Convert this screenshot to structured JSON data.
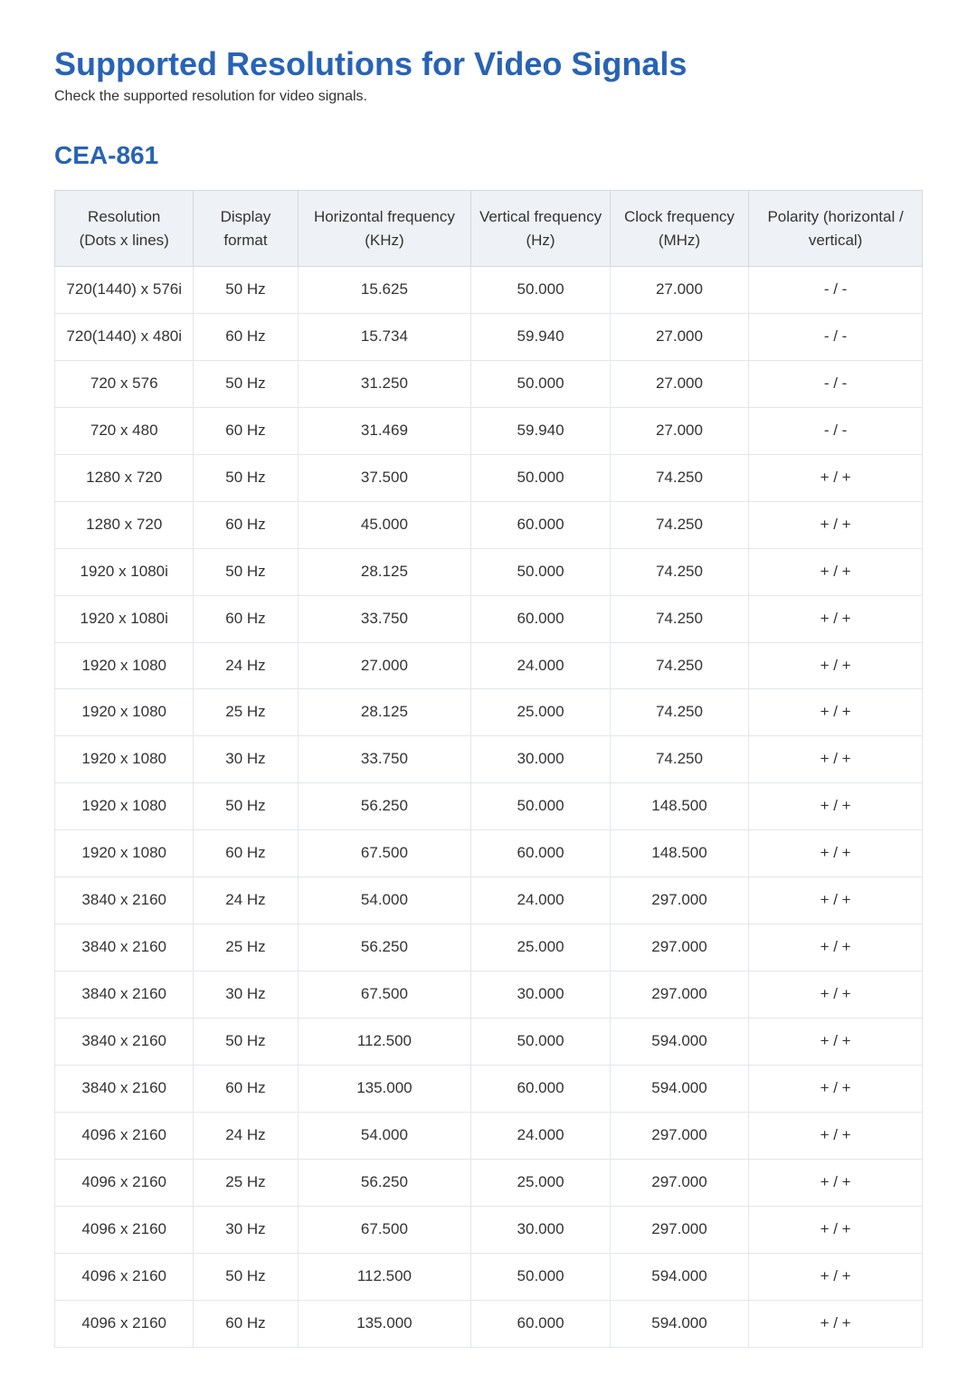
{
  "page": {
    "title": "Supported Resolutions for Video Signals",
    "subtitle": "Check the supported resolution for video signals."
  },
  "section": {
    "title": "CEA-861"
  },
  "table": {
    "columns": [
      {
        "line1": "Resolution",
        "line2": "(Dots x lines)"
      },
      {
        "line1": "Display format",
        "line2": ""
      },
      {
        "line1": "Horizontal frequency",
        "line2": "(KHz)"
      },
      {
        "line1": "Vertical frequency",
        "line2": "(Hz)"
      },
      {
        "line1": "Clock frequency",
        "line2": "(MHz)"
      },
      {
        "line1": "Polarity (horizontal / vertical)",
        "line2": ""
      }
    ],
    "rows": [
      [
        "720(1440) x 576i",
        "50 Hz",
        "15.625",
        "50.000",
        "27.000",
        "- / -"
      ],
      [
        "720(1440) x 480i",
        "60 Hz",
        "15.734",
        "59.940",
        "27.000",
        "- / -"
      ],
      [
        "720 x 576",
        "50 Hz",
        "31.250",
        "50.000",
        "27.000",
        "- / -"
      ],
      [
        "720 x 480",
        "60 Hz",
        "31.469",
        "59.940",
        "27.000",
        "- / -"
      ],
      [
        "1280 x 720",
        "50 Hz",
        "37.500",
        "50.000",
        "74.250",
        "+ / +"
      ],
      [
        "1280 x 720",
        "60 Hz",
        "45.000",
        "60.000",
        "74.250",
        "+ / +"
      ],
      [
        "1920 x 1080i",
        "50 Hz",
        "28.125",
        "50.000",
        "74.250",
        "+ / +"
      ],
      [
        "1920 x 1080i",
        "60 Hz",
        "33.750",
        "60.000",
        "74.250",
        "+ / +"
      ],
      [
        "1920 x 1080",
        "24 Hz",
        "27.000",
        "24.000",
        "74.250",
        "+ / +"
      ],
      [
        "1920 x 1080",
        "25 Hz",
        "28.125",
        "25.000",
        "74.250",
        "+ / +"
      ],
      [
        "1920 x 1080",
        "30 Hz",
        "33.750",
        "30.000",
        "74.250",
        "+ / +"
      ],
      [
        "1920 x 1080",
        "50 Hz",
        "56.250",
        "50.000",
        "148.500",
        "+ / +"
      ],
      [
        "1920 x 1080",
        "60 Hz",
        "67.500",
        "60.000",
        "148.500",
        "+ / +"
      ],
      [
        "3840 x 2160",
        "24 Hz",
        "54.000",
        "24.000",
        "297.000",
        "+ / +"
      ],
      [
        "3840 x 2160",
        "25 Hz",
        "56.250",
        "25.000",
        "297.000",
        "+ / +"
      ],
      [
        "3840 x 2160",
        "30 Hz",
        "67.500",
        "30.000",
        "297.000",
        "+ / +"
      ],
      [
        "3840 x 2160",
        "50 Hz",
        "112.500",
        "50.000",
        "594.000",
        "+ / +"
      ],
      [
        "3840 x 2160",
        "60 Hz",
        "135.000",
        "60.000",
        "594.000",
        "+ / +"
      ],
      [
        "4096 x 2160",
        "24 Hz",
        "54.000",
        "24.000",
        "297.000",
        "+ / +"
      ],
      [
        "4096 x 2160",
        "25 Hz",
        "56.250",
        "25.000",
        "297.000",
        "+ / +"
      ],
      [
        "4096 x 2160",
        "30 Hz",
        "67.500",
        "30.000",
        "297.000",
        "+ / +"
      ],
      [
        "4096 x 2160",
        "50 Hz",
        "112.500",
        "50.000",
        "594.000",
        "+ / +"
      ],
      [
        "4096 x 2160",
        "60 Hz",
        "135.000",
        "60.000",
        "594.000",
        "+ / +"
      ]
    ]
  },
  "style": {
    "title_color": "#2863b5",
    "header_bg": "#eef1f5",
    "border_color": "#d4d9de",
    "highlight_bg": "#d9e3f2",
    "body_bg": "#ffffff",
    "text_color": "#333333"
  }
}
